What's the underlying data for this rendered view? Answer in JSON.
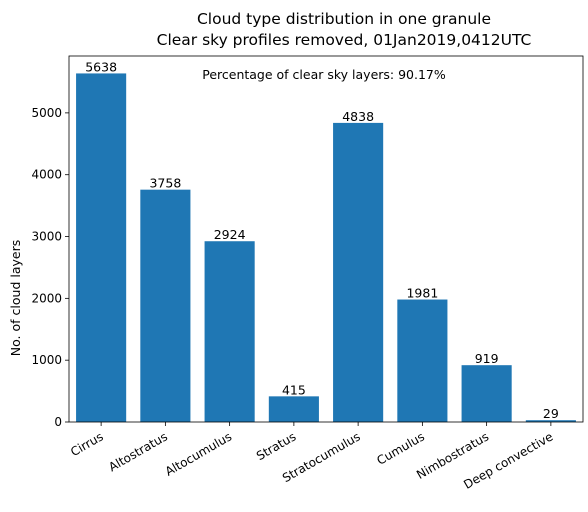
{
  "chart_data": {
    "type": "bar",
    "title": "Cloud type distribution in one granule",
    "subtitle": "Clear sky profiles removed, 01Jan2019,0412UTC",
    "annotation": "Percentage of clear sky layers: 90.17%",
    "ylabel": "No. of cloud layers",
    "xlabel": "",
    "categories": [
      "Cirrus",
      "Altostratus",
      "Altocumulus",
      "Stratus",
      "Stratocumulus",
      "Cumulus",
      "Nimbostratus",
      "Deep convective"
    ],
    "values": [
      5638,
      3758,
      2924,
      415,
      4838,
      1981,
      919,
      29
    ],
    "ylim": [
      0,
      5920
    ],
    "yticks": [
      0,
      1000,
      2000,
      3000,
      4000,
      5000
    ],
    "grid": false,
    "bar_color": "#1f77b4"
  }
}
